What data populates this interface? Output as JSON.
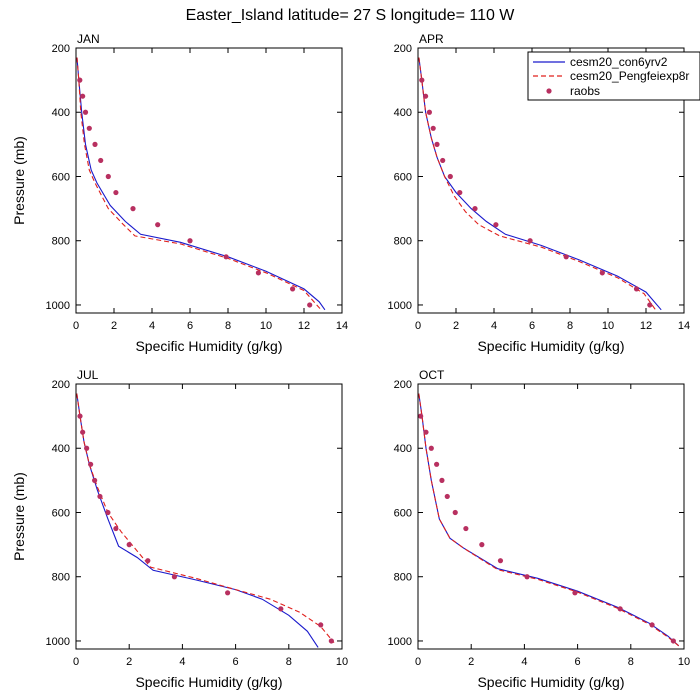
{
  "title": "Easter_Island  latitude= 27 S longitude= 110 W",
  "colors": {
    "model1": "#1a1acc",
    "model2": "#e0201c",
    "obs": "#b83060"
  },
  "legend": {
    "placement": "top-right",
    "entries": [
      "cesm20_con6yrv2",
      "cesm20_Pengfeiexp8r",
      "raobs"
    ]
  },
  "chart_data": [
    {
      "type": "line",
      "panel_label": "JAN",
      "xlabel": "Specific Humidity (g/kg)",
      "ylabel": "Pressure (mb)",
      "xlim": [
        0,
        14
      ],
      "ylim": [
        1025,
        200
      ],
      "xticks": [
        0,
        2,
        4,
        6,
        8,
        10,
        12,
        14
      ],
      "yticks": [
        200,
        400,
        600,
        800,
        1000
      ],
      "series": [
        {
          "name": "cesm20_con6yrv2",
          "style": "solid",
          "x": [
            0.05,
            0.15,
            0.3,
            0.5,
            0.8,
            1.1,
            1.8,
            2.6,
            3.4,
            5.5,
            8.0,
            10.0,
            12.0,
            12.8,
            13.1
          ],
          "y": [
            230,
            300,
            400,
            500,
            580,
            620,
            690,
            740,
            780,
            805,
            850,
            895,
            950,
            990,
            1015
          ]
        },
        {
          "name": "cesm20_Pengfeiexp8r",
          "style": "dashed",
          "x": [
            0.05,
            0.15,
            0.25,
            0.45,
            0.7,
            1.0,
            1.7,
            2.5,
            3.1,
            5.5,
            8.0,
            10.0,
            12.0,
            12.6,
            12.9
          ],
          "y": [
            230,
            300,
            400,
            500,
            580,
            620,
            700,
            750,
            785,
            810,
            855,
            900,
            955,
            995,
            1015
          ]
        },
        {
          "name": "raobs",
          "style": "points",
          "x": [
            0.2,
            0.35,
            0.5,
            0.7,
            1.0,
            1.3,
            1.7,
            2.1,
            3.0,
            4.3,
            6.0,
            7.9,
            9.6,
            11.4,
            12.3
          ],
          "y": [
            300,
            350,
            400,
            450,
            500,
            550,
            600,
            650,
            700,
            750,
            800,
            850,
            900,
            950,
            1000
          ]
        }
      ]
    },
    {
      "type": "line",
      "panel_label": "APR",
      "xlabel": "Specific Humidity (g/kg)",
      "ylabel": "",
      "xlim": [
        0,
        14
      ],
      "ylim": [
        1025,
        200
      ],
      "xticks": [
        0,
        2,
        4,
        6,
        8,
        10,
        12,
        14
      ],
      "yticks": [
        200,
        400,
        600,
        800,
        1000
      ],
      "series": [
        {
          "name": "cesm20_con6yrv2",
          "style": "solid",
          "x": [
            0.05,
            0.2,
            0.4,
            0.7,
            1.0,
            1.4,
            2.0,
            2.8,
            3.6,
            4.6,
            6.5,
            8.5,
            10.5,
            12.0,
            12.8
          ],
          "y": [
            230,
            300,
            400,
            480,
            540,
            600,
            650,
            700,
            740,
            780,
            815,
            860,
            910,
            960,
            1015
          ]
        },
        {
          "name": "cesm20_Pengfeiexp8r",
          "style": "dashed",
          "x": [
            0.05,
            0.2,
            0.4,
            0.7,
            1.0,
            1.4,
            1.9,
            2.5,
            3.2,
            4.3,
            6.5,
            8.5,
            10.5,
            11.9,
            12.5
          ],
          "y": [
            230,
            300,
            400,
            480,
            540,
            600,
            660,
            710,
            750,
            785,
            820,
            865,
            915,
            965,
            1015
          ]
        },
        {
          "name": "raobs",
          "style": "points",
          "x": [
            0.2,
            0.4,
            0.6,
            0.8,
            1.0,
            1.3,
            1.7,
            2.2,
            3.0,
            4.1,
            5.9,
            7.8,
            9.7,
            11.5,
            12.2
          ],
          "y": [
            300,
            350,
            400,
            450,
            500,
            550,
            600,
            650,
            700,
            750,
            800,
            850,
            900,
            950,
            1000
          ]
        }
      ]
    },
    {
      "type": "line",
      "panel_label": "JUL",
      "xlabel": "Specific Humidity (g/kg)",
      "ylabel": "Pressure (mb)",
      "xlim": [
        0,
        10
      ],
      "ylim": [
        1025,
        200
      ],
      "xticks": [
        0,
        2,
        4,
        6,
        8,
        10
      ],
      "yticks": [
        200,
        400,
        600,
        800,
        1000
      ],
      "series": [
        {
          "name": "cesm20_con6yrv2",
          "style": "solid",
          "x": [
            0.03,
            0.15,
            0.3,
            0.5,
            0.8,
            1.2,
            1.6,
            2.3,
            2.9,
            4.5,
            6.0,
            7.0,
            8.0,
            8.7,
            9.1
          ],
          "y": [
            230,
            300,
            380,
            450,
            530,
            620,
            705,
            740,
            780,
            810,
            840,
            870,
            920,
            970,
            1020
          ]
        },
        {
          "name": "cesm20_Pengfeiexp8r",
          "style": "dashed",
          "x": [
            0.03,
            0.15,
            0.3,
            0.5,
            0.8,
            1.2,
            1.7,
            2.2,
            2.8,
            4.5,
            6.0,
            7.3,
            8.4,
            9.2,
            9.7
          ],
          "y": [
            230,
            300,
            380,
            450,
            520,
            600,
            660,
            710,
            770,
            805,
            840,
            870,
            910,
            955,
            1005
          ]
        },
        {
          "name": "raobs",
          "style": "points",
          "x": [
            0.15,
            0.25,
            0.4,
            0.55,
            0.7,
            0.9,
            1.2,
            1.5,
            2.0,
            2.7,
            3.7,
            5.7,
            7.7,
            9.2,
            9.6
          ],
          "y": [
            300,
            350,
            400,
            450,
            500,
            550,
            600,
            650,
            700,
            750,
            800,
            850,
            900,
            950,
            1000
          ]
        }
      ]
    },
    {
      "type": "line",
      "panel_label": "OCT",
      "xlabel": "Specific Humidity (g/kg)",
      "ylabel": "",
      "xlim": [
        0,
        10
      ],
      "ylim": [
        1025,
        200
      ],
      "xticks": [
        0,
        2,
        4,
        6,
        8,
        10
      ],
      "yticks": [
        200,
        400,
        600,
        800,
        1000
      ],
      "series": [
        {
          "name": "cesm20_con6yrv2",
          "style": "solid",
          "x": [
            0.03,
            0.15,
            0.3,
            0.5,
            0.8,
            1.2,
            1.7,
            2.3,
            3.0,
            4.5,
            6.0,
            7.5,
            8.7,
            9.4,
            9.8
          ],
          "y": [
            230,
            300,
            400,
            500,
            620,
            680,
            710,
            740,
            775,
            805,
            845,
            895,
            945,
            985,
            1015
          ]
        },
        {
          "name": "cesm20_Pengfeiexp8r",
          "style": "dashed",
          "x": [
            0.03,
            0.15,
            0.3,
            0.5,
            0.8,
            1.2,
            1.7,
            2.3,
            3.0,
            4.5,
            6.0,
            7.5,
            8.7,
            9.4,
            9.8
          ],
          "y": [
            230,
            300,
            400,
            500,
            620,
            680,
            710,
            742,
            778,
            808,
            848,
            898,
            948,
            988,
            1015
          ]
        },
        {
          "name": "raobs",
          "style": "points",
          "x": [
            0.1,
            0.3,
            0.5,
            0.7,
            0.9,
            1.1,
            1.4,
            1.8,
            2.4,
            3.1,
            4.1,
            5.9,
            7.6,
            8.8,
            9.6
          ],
          "y": [
            300,
            350,
            400,
            450,
            500,
            550,
            600,
            650,
            700,
            750,
            800,
            850,
            900,
            950,
            1000
          ]
        }
      ]
    }
  ]
}
